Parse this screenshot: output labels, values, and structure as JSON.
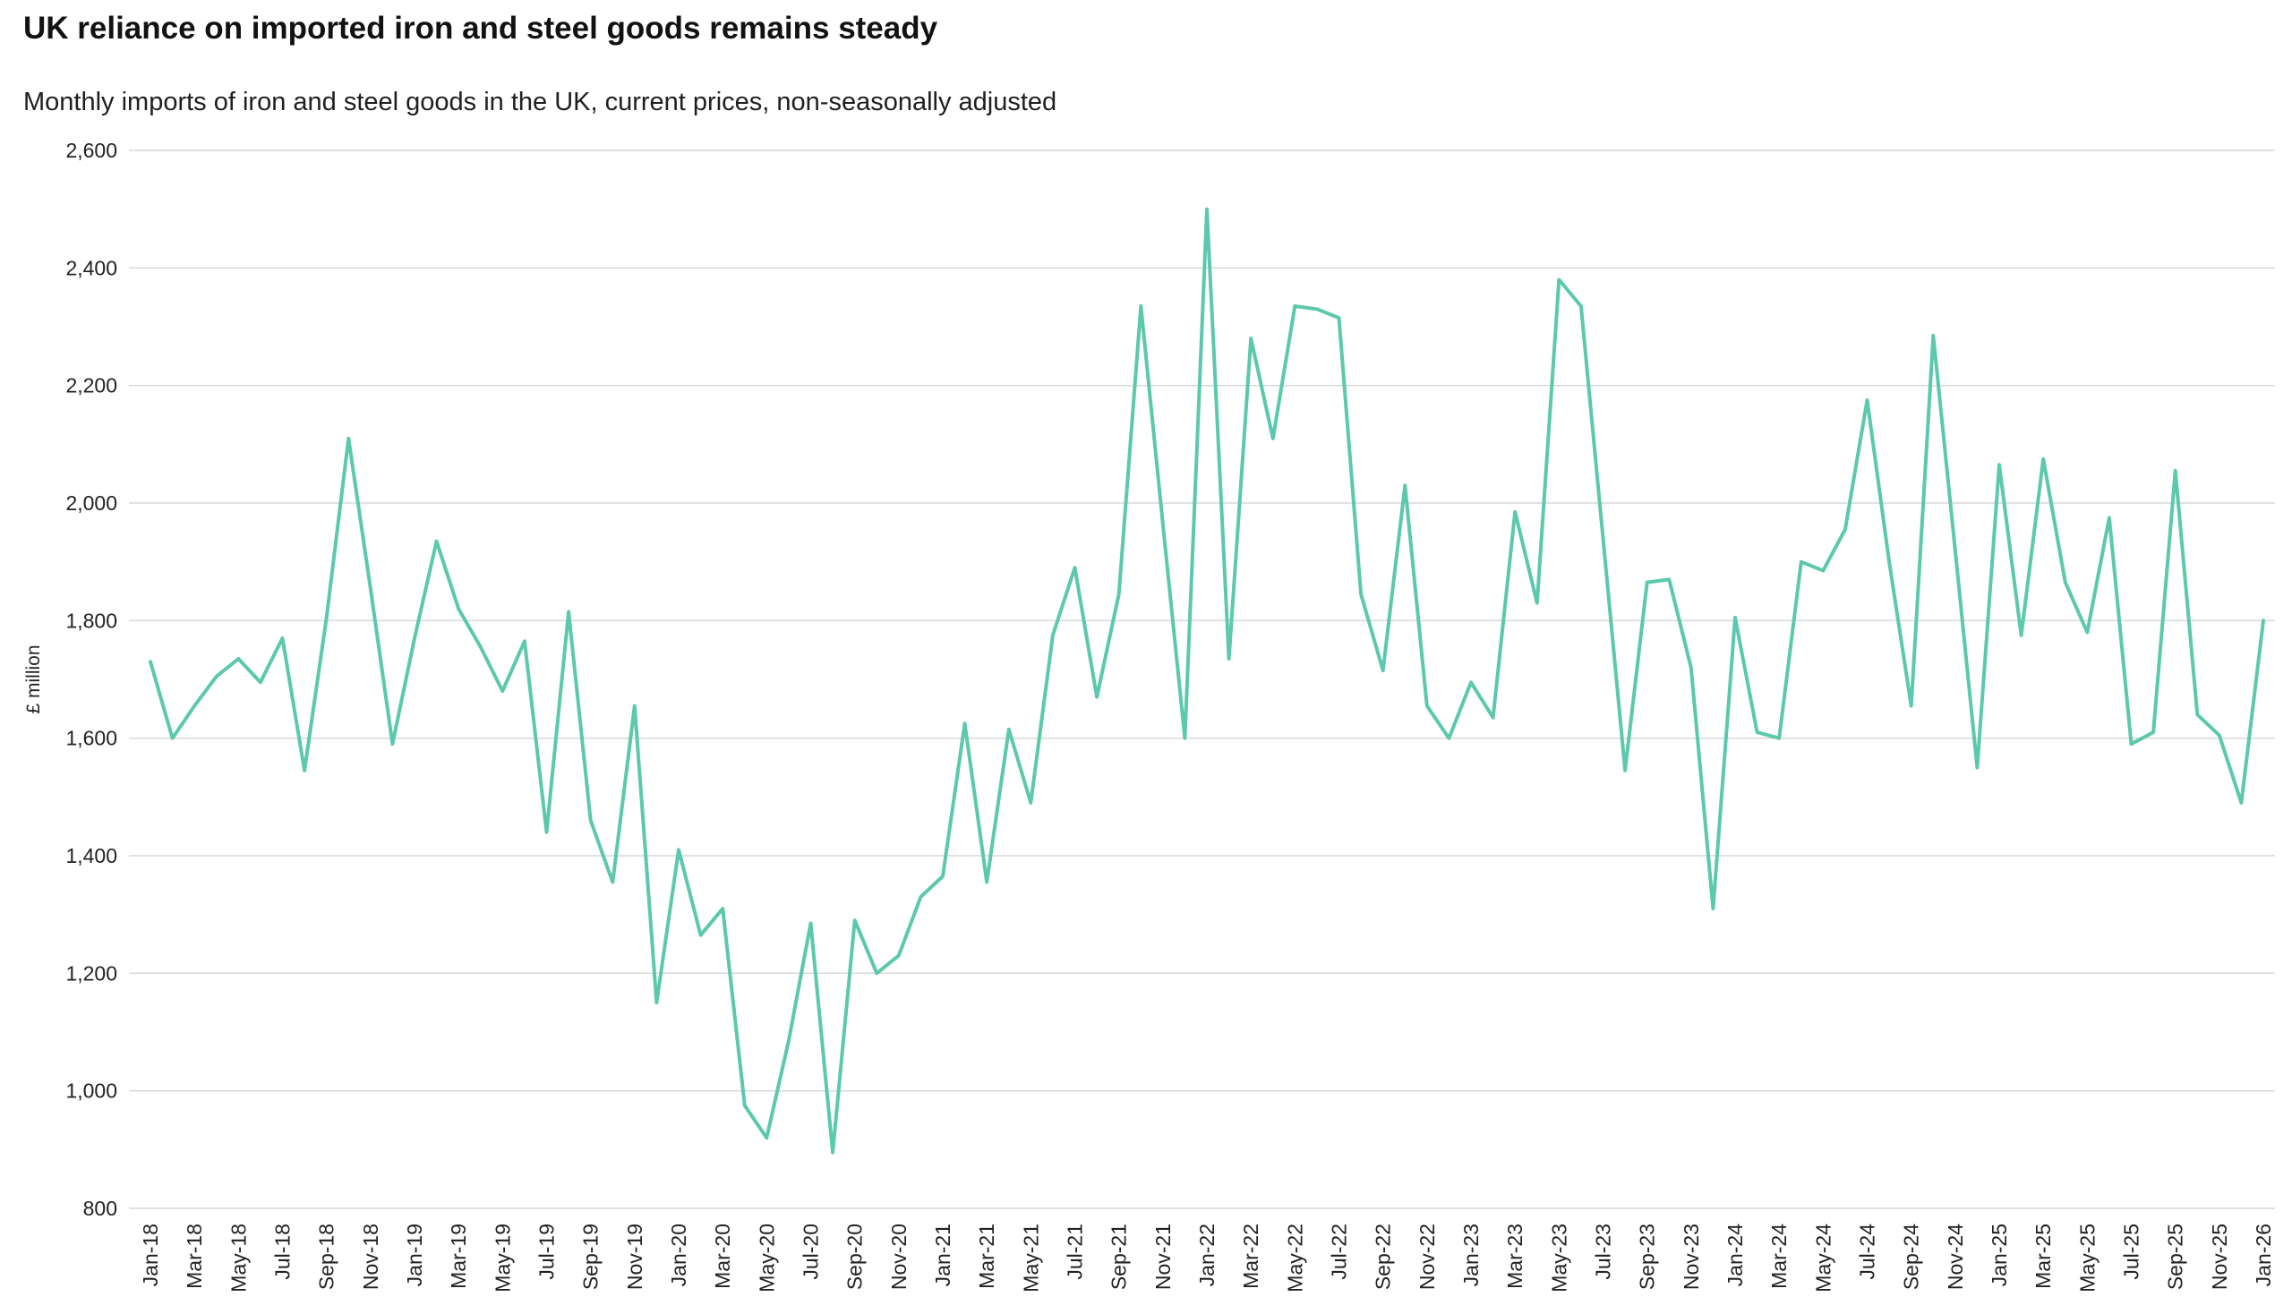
{
  "title": "UK reliance on imported iron and steel goods remains steady",
  "subtitle": "Monthly imports of iron and steel goods in the UK, current prices, non-seasonally adjusted",
  "colors": {
    "line": "#5CC8AC",
    "grid": "#D9D9D9",
    "text": "#222222",
    "background": "#FFFFFF"
  },
  "chart_data": {
    "type": "line",
    "title": "UK reliance on imported iron and steel goods remains steady",
    "subtitle": "Monthly imports of iron and steel goods in the UK, current prices, non-seasonally adjusted",
    "xlabel": "",
    "ylabel": "£ million",
    "ylim": [
      800,
      2600
    ],
    "ytick_step": 200,
    "x_tick_every": 2,
    "grid": "horizontal",
    "legend": "none",
    "line_color": "#5CC8AC",
    "categories": [
      "Jan-18",
      "Feb-18",
      "Mar-18",
      "Apr-18",
      "May-18",
      "Jun-18",
      "Jul-18",
      "Aug-18",
      "Sep-18",
      "Oct-18",
      "Nov-18",
      "Dec-18",
      "Jan-19",
      "Feb-19",
      "Mar-19",
      "Apr-19",
      "May-19",
      "Jun-19",
      "Jul-19",
      "Aug-19",
      "Sep-19",
      "Oct-19",
      "Nov-19",
      "Dec-19",
      "Jan-20",
      "Feb-20",
      "Mar-20",
      "Apr-20",
      "May-20",
      "Jun-20",
      "Jul-20",
      "Aug-20",
      "Sep-20",
      "Oct-20",
      "Nov-20",
      "Dec-20",
      "Jan-21",
      "Feb-21",
      "Mar-21",
      "Apr-21",
      "May-21",
      "Jun-21",
      "Jul-21",
      "Aug-21",
      "Sep-21",
      "Oct-21",
      "Nov-21",
      "Dec-21",
      "Jan-22",
      "Feb-22",
      "Mar-22",
      "Apr-22",
      "May-22",
      "Jun-22",
      "Jul-22",
      "Aug-22",
      "Sep-22",
      "Oct-22",
      "Nov-22",
      "Dec-22",
      "Jan-23",
      "Feb-23",
      "Mar-23",
      "Apr-23",
      "May-23",
      "Jun-23",
      "Jul-23",
      "Aug-23",
      "Sep-23",
      "Oct-23",
      "Nov-23",
      "Dec-23",
      "Jan-24",
      "Feb-24",
      "Mar-24",
      "Apr-24",
      "May-24",
      "Jun-24",
      "Jul-24",
      "Aug-24",
      "Sep-24",
      "Oct-24",
      "Nov-24",
      "Dec-24",
      "Jan-25",
      "Feb-25",
      "Mar-25",
      "Apr-25",
      "May-25",
      "Jun-25",
      "Jul-25",
      "Aug-25",
      "Sep-25",
      "Oct-25",
      "Nov-25",
      "Dec-25",
      "Jan-26"
    ],
    "values": [
      1730,
      1600,
      1655,
      1705,
      1735,
      1695,
      1770,
      1545,
      1805,
      2110,
      1855,
      1590,
      1770,
      1935,
      1820,
      1755,
      1680,
      1765,
      1440,
      1815,
      1460,
      1355,
      1655,
      1150,
      1410,
      1265,
      1310,
      975,
      920,
      1085,
      1285,
      895,
      1290,
      1200,
      1230,
      1330,
      1365,
      1625,
      1355,
      1615,
      1490,
      1775,
      1890,
      1670,
      1845,
      2335,
      1965,
      1600,
      2500,
      1735,
      2280,
      2110,
      2335,
      2330,
      2315,
      1845,
      1715,
      2030,
      1655,
      1600,
      1695,
      1635,
      1985,
      1830,
      2380,
      2335,
      1940,
      1545,
      1865,
      1870,
      1720,
      1310,
      1805,
      1610,
      1600,
      1900,
      1885,
      1955,
      2175,
      1900,
      1655,
      2285,
      1920,
      1550,
      2065,
      1775,
      2075,
      1865,
      1780,
      1975,
      1590,
      1610,
      2055,
      1640,
      1605,
      1490,
      1800
    ]
  }
}
